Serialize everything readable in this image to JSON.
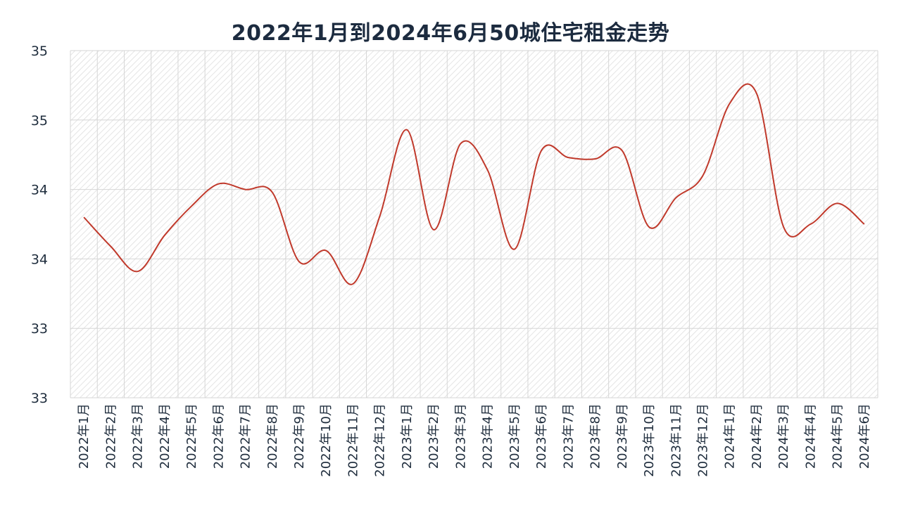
{
  "chart_data": {
    "type": "line",
    "title": "2022年1月到2024年6月50城住宅租金走势",
    "xlabel": "",
    "ylabel": "",
    "grid": true,
    "legend": "none",
    "line_color": "#c0392b",
    "ylim": [
      32.75,
      35.25
    ],
    "y_ticks": [
      32.75,
      33.25,
      33.75,
      34.25,
      34.75,
      35.25
    ],
    "y_tick_labels": [
      "33",
      "33",
      "34",
      "34",
      "35",
      "35"
    ],
    "categories": [
      "2022年1月",
      "2022年2月",
      "2022年3月",
      "2022年4月",
      "2022年5月",
      "2022年6月",
      "2022年7月",
      "2022年8月",
      "2022年9月",
      "2022年10月",
      "2022年11月",
      "2022年12月",
      "2023年1月",
      "2023年2月",
      "2023年3月",
      "2023年4月",
      "2023年5月",
      "2023年6月",
      "2023年7月",
      "2023年8月",
      "2023年9月",
      "2023年10月",
      "2023年11月",
      "2023年12月",
      "2024年1月",
      "2024年2月",
      "2024年3月",
      "2024年4月",
      "2024年5月",
      "2024年6月"
    ],
    "series": [
      {
        "values": [
          34.05,
          33.84,
          33.66,
          33.92,
          34.13,
          34.29,
          34.25,
          34.23,
          33.73,
          33.81,
          33.57,
          34.06,
          34.68,
          33.96,
          34.58,
          34.39,
          33.82,
          34.53,
          34.48,
          34.47,
          34.53,
          33.98,
          34.19,
          34.35,
          34.87,
          34.94,
          33.98,
          34.0,
          34.15,
          34.0
        ]
      }
    ]
  }
}
